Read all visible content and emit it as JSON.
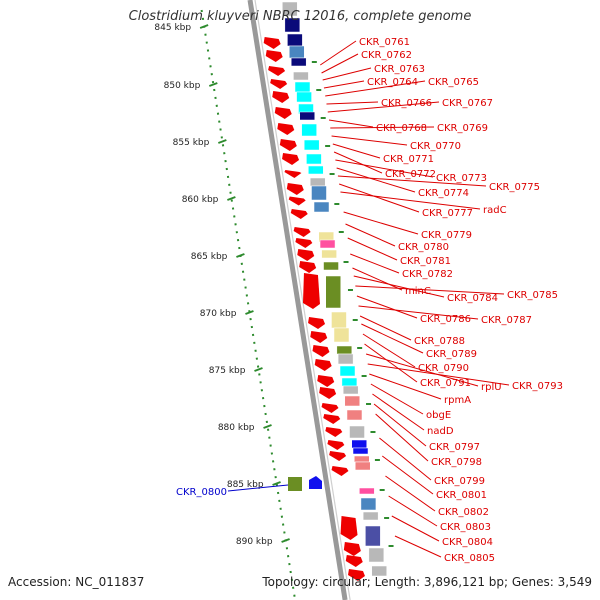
{
  "title": "Clostridium kluyveri NBRC 12016, complete genome",
  "footer": {
    "accession": "Accession: NC_011837",
    "topology": "Topology: circular; Length: 3,896,121 bp; Genes: 3,549"
  },
  "colors": {
    "backbone": "#999999",
    "gene_label": "#dd0000",
    "highlight_label": "#0000cc",
    "ruler_tick": "#2e8b2e",
    "arrow": "#ee0000",
    "cyan": "#00ffff",
    "navy": "#0a0a7a",
    "steel": "#4a86c0",
    "gray": "#b8b8b8",
    "pink": "#ff4fa0",
    "olive": "#6b8e23",
    "khaki": "#efe39a",
    "salmon": "#f08080",
    "blue": "#1010ee",
    "slate": "#4b4fa5"
  },
  "ruler": {
    "unit": "kbp",
    "ticks": [
      {
        "label": "845 kbp",
        "value": 845
      },
      {
        "label": "850 kbp",
        "value": 850
      },
      {
        "label": "855 kbp",
        "value": 855
      },
      {
        "label": "860 kbp",
        "value": 860
      },
      {
        "label": "865 kbp",
        "value": 865
      },
      {
        "label": "870 kbp",
        "value": 870
      },
      {
        "label": "875 kbp",
        "value": 875
      },
      {
        "label": "880 kbp",
        "value": 880
      },
      {
        "label": "885 kbp",
        "value": 885
      },
      {
        "label": "890 kbp",
        "value": 890
      }
    ]
  },
  "highlight": {
    "label": "CKR_0800"
  },
  "gene_labels": [
    "CKR_0761",
    "CKR_0762",
    "CKR_0763",
    "CKR_0764",
    "CKR_0765",
    "CKR_0766",
    "CKR_0767",
    "CKR_0768",
    "CKR_0769",
    "CKR_0770",
    "CKR_0771",
    "CKR_0772",
    "CKR_0773",
    "CKR_0774",
    "CKR_0775",
    "CKR_0777",
    "radC",
    "CKR_0779",
    "CKR_0780",
    "CKR_0781",
    "CKR_0782",
    "minC",
    "CKR_0784",
    "CKR_0785",
    "CKR_0786",
    "CKR_0787",
    "CKR_0788",
    "CKR_0789",
    "CKR_0790",
    "CKR_0791",
    "rplU",
    "CKR_0793",
    "rpmA",
    "obgE",
    "nadD",
    "CKR_0797",
    "CKR_0798",
    "CKR_0799",
    "CKR_0801",
    "CKR_0802",
    "CKR_0803",
    "CKR_0804",
    "CKR_0805"
  ]
}
